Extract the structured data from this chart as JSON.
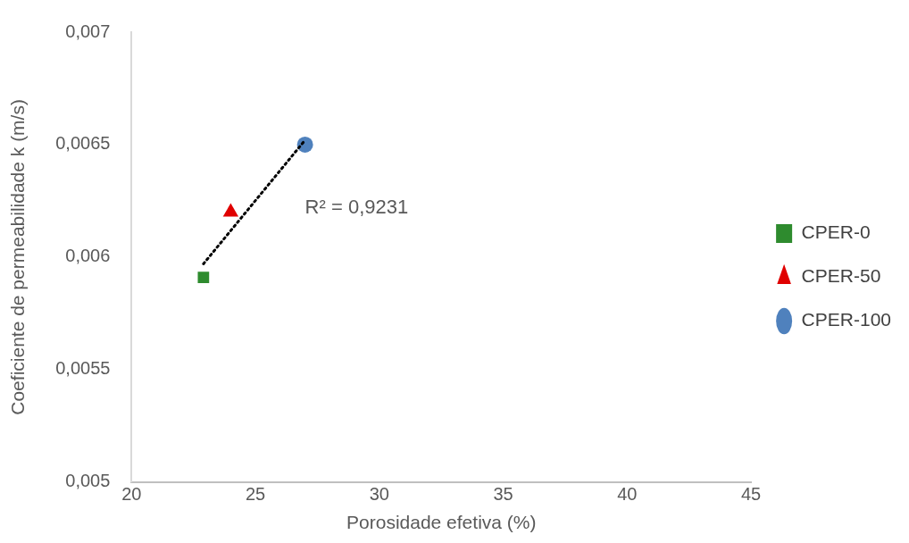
{
  "chart_data": {
    "type": "scatter",
    "xlabel": "Porosidade efetiva (%)",
    "ylabel": "Coeficiente de permeabilidade k (m/s)",
    "xlim": [
      20,
      45
    ],
    "xticks": [
      20,
      25,
      30,
      35,
      40,
      45
    ],
    "ylim": [
      0.005,
      0.007
    ],
    "yticks": [
      {
        "value": 0.005,
        "label": "0,005"
      },
      {
        "value": 0.0055,
        "label": "0,0055"
      },
      {
        "value": 0.006,
        "label": "0,006"
      },
      {
        "value": 0.0065,
        "label": "0,0065"
      },
      {
        "value": 0.007,
        "label": "0,007"
      }
    ],
    "grid": false,
    "legend": "right",
    "series": [
      {
        "name": "CPER-0",
        "color": "#2e8b2e",
        "marker": "square",
        "x": [
          22.9
        ],
        "values": [
          0.00591
        ]
      },
      {
        "name": "CPER-50",
        "color": "#e00000",
        "marker": "triangle",
        "x": [
          24
        ],
        "values": [
          0.0062
        ]
      },
      {
        "name": "CPER-100",
        "color": "#4f81bd",
        "marker": "circle",
        "x": [
          27
        ],
        "values": [
          0.0065
        ]
      },
      {
        "type": "line",
        "color": "#000000",
        "line_style": "dotted",
        "marker": "none",
        "x": [
          22.9,
          27
        ],
        "values": [
          0.00597,
          0.00652
        ]
      }
    ],
    "annotations": [
      "R² = 0,9231"
    ]
  }
}
